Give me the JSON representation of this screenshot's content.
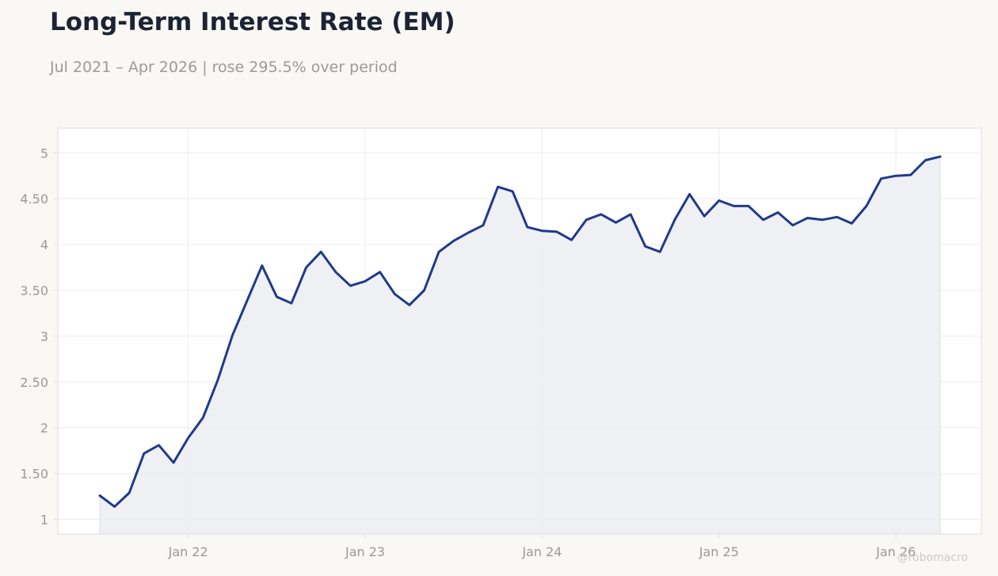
{
  "title": "Long-Term Interest Rate (EM)",
  "subtitle": "Jul 2021 – Apr 2026 | rose 295.5% over period",
  "watermark": "@robomacro",
  "colors": {
    "line": "#1f3a8a",
    "fill": "#edeef3",
    "grid": "#ececec",
    "frame": "#dcdcda",
    "tick_text": "#999999"
  },
  "chart_data": {
    "type": "area",
    "x_start": "2021-07",
    "x_end": "2026-04",
    "x_tick_labels": [
      "Jan 22",
      "Jan 23",
      "Jan 24",
      "Jan 25",
      "Jan 26"
    ],
    "x_tick_dates": [
      "2022-01",
      "2023-01",
      "2024-01",
      "2025-01",
      "2026-01"
    ],
    "y_ticks": [
      1,
      1.5,
      2,
      2.5,
      3,
      3.5,
      4,
      4.5,
      5
    ],
    "y_tick_labels": [
      "1",
      "1.50",
      "2",
      "2.50",
      "3",
      "3.50",
      "4",
      "4.50",
      "5"
    ],
    "ylim": [
      0.84,
      5.27
    ],
    "grid": true,
    "legend": "none",
    "series": [
      {
        "x": [
          "2021-07",
          "2021-08",
          "2021-09",
          "2021-10",
          "2021-11",
          "2021-12",
          "2022-01",
          "2022-02",
          "2022-03",
          "2022-04",
          "2022-05",
          "2022-06",
          "2022-07",
          "2022-08",
          "2022-09",
          "2022-10",
          "2022-11",
          "2022-12",
          "2023-01",
          "2023-02",
          "2023-03",
          "2023-04",
          "2023-05",
          "2023-06",
          "2023-07",
          "2023-08",
          "2023-09",
          "2023-10",
          "2023-11",
          "2023-12",
          "2024-01",
          "2024-02",
          "2024-03",
          "2024-04",
          "2024-05",
          "2024-06",
          "2024-07",
          "2024-08",
          "2024-09",
          "2024-10",
          "2024-11",
          "2024-12",
          "2025-01",
          "2025-02",
          "2025-03",
          "2025-04",
          "2025-05",
          "2025-06",
          "2025-07",
          "2025-08",
          "2025-09",
          "2025-10",
          "2025-11",
          "2025-12",
          "2026-01",
          "2026-02",
          "2026-03",
          "2026-04"
        ],
        "values": [
          1.26,
          1.14,
          1.29,
          1.72,
          1.81,
          1.62,
          1.89,
          2.11,
          2.52,
          3.01,
          3.39,
          3.77,
          3.43,
          3.36,
          3.75,
          3.92,
          3.7,
          3.55,
          3.6,
          3.7,
          3.46,
          3.34,
          3.5,
          3.92,
          4.04,
          4.13,
          4.21,
          4.63,
          4.58,
          4.19,
          4.15,
          4.14,
          4.05,
          4.27,
          4.33,
          4.24,
          4.33,
          3.98,
          3.92,
          4.27,
          4.55,
          4.31,
          4.48,
          4.42,
          4.42,
          4.27,
          4.35,
          4.21,
          4.29,
          4.27,
          4.3,
          4.23,
          4.42,
          4.72,
          4.75,
          4.76,
          4.92,
          4.96
        ]
      }
    ]
  }
}
